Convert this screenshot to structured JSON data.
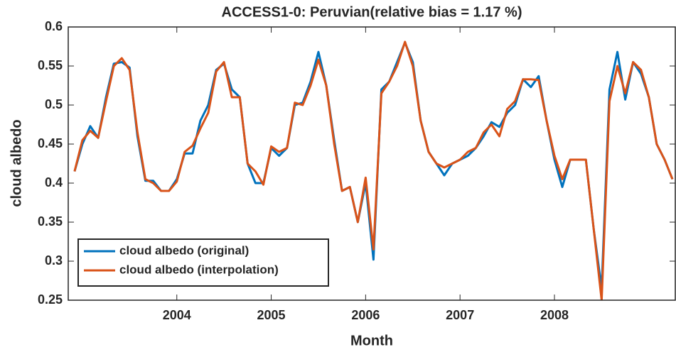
{
  "chart_data": {
    "type": "line",
    "title": "ACCESS1-0: Peruvian(relative bias = 1.17 %)",
    "x_label": "Month",
    "y_label": "cloud albedo",
    "x": [
      2002.917,
      2003,
      2003.083,
      2003.167,
      2003.25,
      2003.333,
      2003.417,
      2003.5,
      2003.583,
      2003.667,
      2003.75,
      2003.833,
      2003.917,
      2004,
      2004.083,
      2004.167,
      2004.25,
      2004.333,
      2004.417,
      2004.5,
      2004.583,
      2004.667,
      2004.75,
      2004.833,
      2004.917,
      2005,
      2005.083,
      2005.167,
      2005.25,
      2005.333,
      2005.417,
      2005.5,
      2005.583,
      2005.667,
      2005.75,
      2005.833,
      2005.917,
      2006,
      2006.083,
      2006.167,
      2006.25,
      2006.333,
      2006.417,
      2006.5,
      2006.583,
      2006.667,
      2006.75,
      2006.833,
      2006.917,
      2007,
      2007.083,
      2007.167,
      2007.25,
      2007.333,
      2007.417,
      2007.5,
      2007.583,
      2007.667,
      2007.75,
      2007.833,
      2007.917,
      2008,
      2008.083,
      2008.167,
      2008.25,
      2008.333,
      2008.417,
      2008.5,
      2008.583,
      2008.667,
      2008.75,
      2008.833,
      2008.917,
      2009,
      2009.083,
      2009.167,
      2009.25
    ],
    "series": [
      {
        "name": "cloud albedo (original)",
        "color": "#0072BD",
        "values": [
          0.415,
          0.45,
          0.473,
          0.458,
          0.51,
          0.553,
          0.555,
          0.548,
          0.46,
          0.403,
          0.403,
          0.39,
          0.39,
          0.405,
          0.438,
          0.438,
          0.48,
          0.5,
          0.545,
          0.553,
          0.52,
          0.51,
          0.425,
          0.4,
          0.4,
          0.445,
          0.435,
          0.445,
          0.5,
          0.503,
          0.53,
          0.568,
          0.525,
          0.455,
          0.39,
          0.395,
          0.35,
          0.4,
          0.302,
          0.52,
          0.53,
          0.555,
          0.58,
          0.555,
          0.48,
          0.44,
          0.425,
          0.41,
          0.425,
          0.43,
          0.435,
          0.445,
          0.46,
          0.478,
          0.472,
          0.49,
          0.5,
          0.533,
          0.523,
          0.537,
          0.48,
          0.43,
          0.395,
          0.43,
          0.43,
          0.43,
          0.34,
          0.265,
          0.52,
          0.568,
          0.507,
          0.555,
          0.54,
          0.51,
          0.45,
          0.43,
          0.405
        ]
      },
      {
        "name": "cloud albedo (interpolation)",
        "color": "#D95319",
        "values": [
          0.415,
          0.455,
          0.467,
          0.458,
          0.505,
          0.55,
          0.56,
          0.545,
          0.465,
          0.405,
          0.4,
          0.39,
          0.39,
          0.402,
          0.44,
          0.448,
          0.47,
          0.49,
          0.543,
          0.555,
          0.51,
          0.51,
          0.425,
          0.415,
          0.398,
          0.447,
          0.44,
          0.445,
          0.503,
          0.5,
          0.525,
          0.558,
          0.525,
          0.45,
          0.39,
          0.395,
          0.35,
          0.407,
          0.315,
          0.515,
          0.53,
          0.55,
          0.581,
          0.55,
          0.48,
          0.44,
          0.425,
          0.42,
          0.425,
          0.43,
          0.44,
          0.445,
          0.465,
          0.475,
          0.46,
          0.495,
          0.505,
          0.533,
          0.533,
          0.532,
          0.48,
          0.435,
          0.405,
          0.43,
          0.43,
          0.43,
          0.34,
          0.25,
          0.505,
          0.55,
          0.515,
          0.555,
          0.545,
          0.51,
          0.45,
          0.43,
          0.405
        ]
      }
    ],
    "xlim": [
      2002.85,
      2009.28
    ],
    "xticks": [
      2004,
      2005,
      2006,
      2007,
      2008
    ],
    "ylim": [
      0.25,
      0.6
    ],
    "yticks": [
      0.25,
      0.3,
      0.35,
      0.4,
      0.45,
      0.5,
      0.55,
      0.6
    ],
    "grid": false,
    "legend": "lower left"
  }
}
